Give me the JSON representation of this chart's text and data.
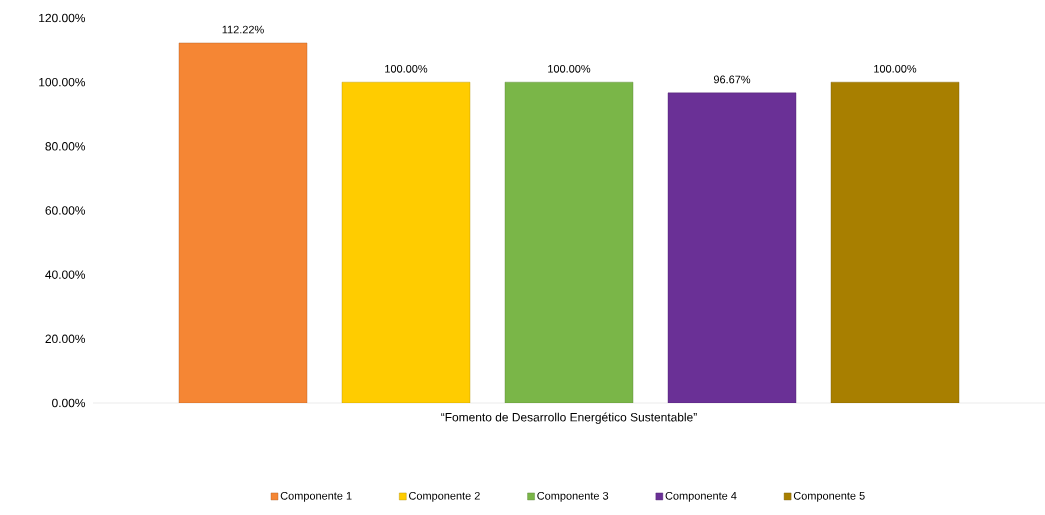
{
  "chart_data": {
    "type": "bar",
    "categories": [
      "“Fomento de Desarrollo Energético Sustentable”"
    ],
    "series": [
      {
        "name": "Componente 1",
        "color": "#f58634",
        "values": [
          112.22
        ],
        "value_labels": [
          "112.22%"
        ]
      },
      {
        "name": "Componente 2",
        "color": "#ffcc00",
        "values": [
          100
        ],
        "value_labels": [
          "100.00%"
        ]
      },
      {
        "name": "Componente 3",
        "color": "#7ab648",
        "values": [
          100
        ],
        "value_labels": [
          "100.00%"
        ]
      },
      {
        "name": "Componente 4",
        "color": "#6a3096",
        "values": [
          96.67
        ],
        "value_labels": [
          "96.67%"
        ]
      },
      {
        "name": "Componente 5",
        "color": "#a87f00",
        "values": [
          100
        ],
        "value_labels": [
          "100.00%"
        ]
      }
    ],
    "ylim": [
      0,
      120
    ],
    "yticks": [
      {
        "value": 0,
        "label": "0.00%"
      },
      {
        "value": 20,
        "label": "20.00%"
      },
      {
        "value": 40,
        "label": "40.00%"
      },
      {
        "value": 60,
        "label": "60.00%"
      },
      {
        "value": 80,
        "label": "80.00%"
      },
      {
        "value": 100,
        "label": "100.00%"
      },
      {
        "value": 120,
        "label": "120.00%"
      }
    ],
    "legend": "bottom"
  }
}
